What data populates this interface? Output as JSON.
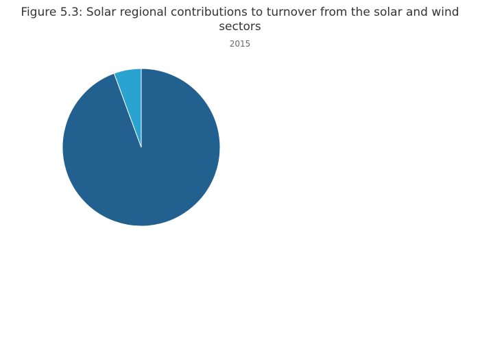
{
  "chart_data": {
    "type": "pie",
    "title": "Figure 5.3: Solar regional contributions to turnover from the solar and wind sectors",
    "subtitle": "2015",
    "values": [
      94.4,
      5.6
    ],
    "colors": [
      "#21608f",
      "#2aa3d0"
    ]
  }
}
